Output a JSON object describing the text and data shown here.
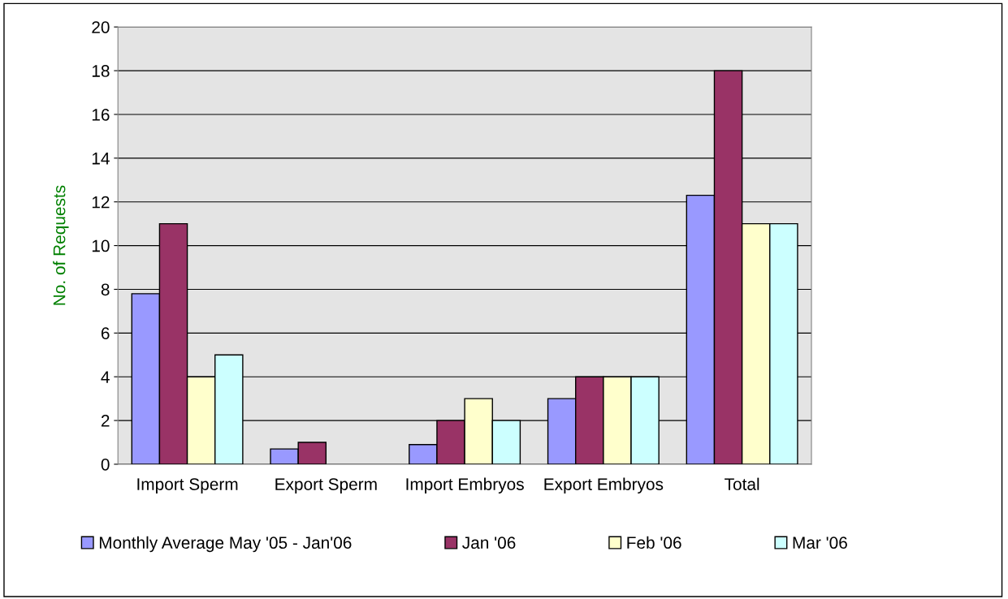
{
  "chart_data": {
    "type": "bar",
    "ylabel": "No. of Requests",
    "categories": [
      "Import Sperm",
      "Export Sperm",
      "Import Embryos",
      "Export Embryos",
      "Total"
    ],
    "series": [
      {
        "name": "Monthly Average May '05 - Jan'06",
        "color": "#9999ff",
        "values": [
          7.8,
          0.7,
          0.9,
          3,
          12.3
        ]
      },
      {
        "name": "Jan '06",
        "color": "#993366",
        "values": [
          11,
          1,
          2,
          4,
          18
        ]
      },
      {
        "name": "Feb '06",
        "color": "#ffffcc",
        "values": [
          4,
          null,
          3,
          4,
          11
        ]
      },
      {
        "name": "Mar '06",
        "color": "#ccffff",
        "values": [
          5,
          null,
          2,
          4,
          11
        ]
      }
    ],
    "ylim": [
      0,
      20
    ],
    "yticks": [
      0,
      2,
      4,
      6,
      8,
      10,
      12,
      14,
      16,
      18,
      20
    ],
    "grid": "y",
    "legend": "bottom"
  }
}
